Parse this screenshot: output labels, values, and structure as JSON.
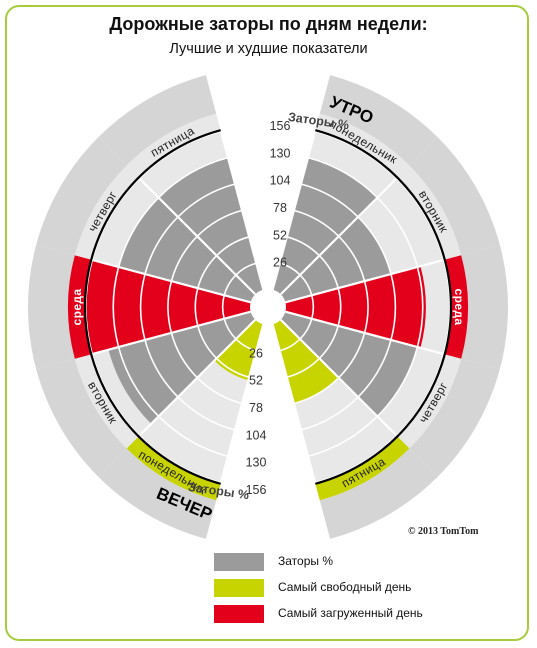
{
  "header": {
    "title": "Дорожные заторы по дням недели:",
    "subtitle": "Лучшие и худшие показатели"
  },
  "copyright": "© 2013 TomTom",
  "colors": {
    "gray": "#9b9b9b",
    "green": "#c8d400",
    "red": "#e2001a",
    "ring_light": "#e8e8e8",
    "ring_outer": "#d5d5d5",
    "frame": "#a6cc3c"
  },
  "legend": [
    {
      "label": "Заторы %",
      "color": "#9b9b9b"
    },
    {
      "label": "Самый свободный день",
      "color": "#c8d400"
    },
    {
      "label": "Самый загруженный день",
      "color": "#e2001a"
    }
  ],
  "chart_data": {
    "type": "polar-bar",
    "axis": {
      "label": "Заторы %",
      "ticks": [
        26,
        52,
        78,
        104,
        130,
        156
      ],
      "max": 156
    },
    "series": [
      {
        "name": "УТРО",
        "days": [
          {
            "day": "понедельник",
            "value": 130,
            "status": "normal"
          },
          {
            "day": "вторник",
            "value": 104,
            "status": "normal"
          },
          {
            "day": "среда",
            "value": 133,
            "status": "busiest"
          },
          {
            "day": "четверг",
            "value": 130,
            "status": "normal"
          },
          {
            "day": "пятница",
            "value": 78,
            "status": "freest"
          }
        ]
      },
      {
        "name": "ВЕЧЕР",
        "days": [
          {
            "day": "понедельник",
            "value": 55,
            "status": "freest"
          },
          {
            "day": "вторник",
            "value": 140,
            "status": "normal"
          },
          {
            "day": "среда",
            "value": 156,
            "status": "busiest"
          },
          {
            "day": "четверг",
            "value": 130,
            "status": "normal"
          },
          {
            "day": "пятница",
            "value": 130,
            "status": "normal"
          }
        ]
      }
    ]
  }
}
